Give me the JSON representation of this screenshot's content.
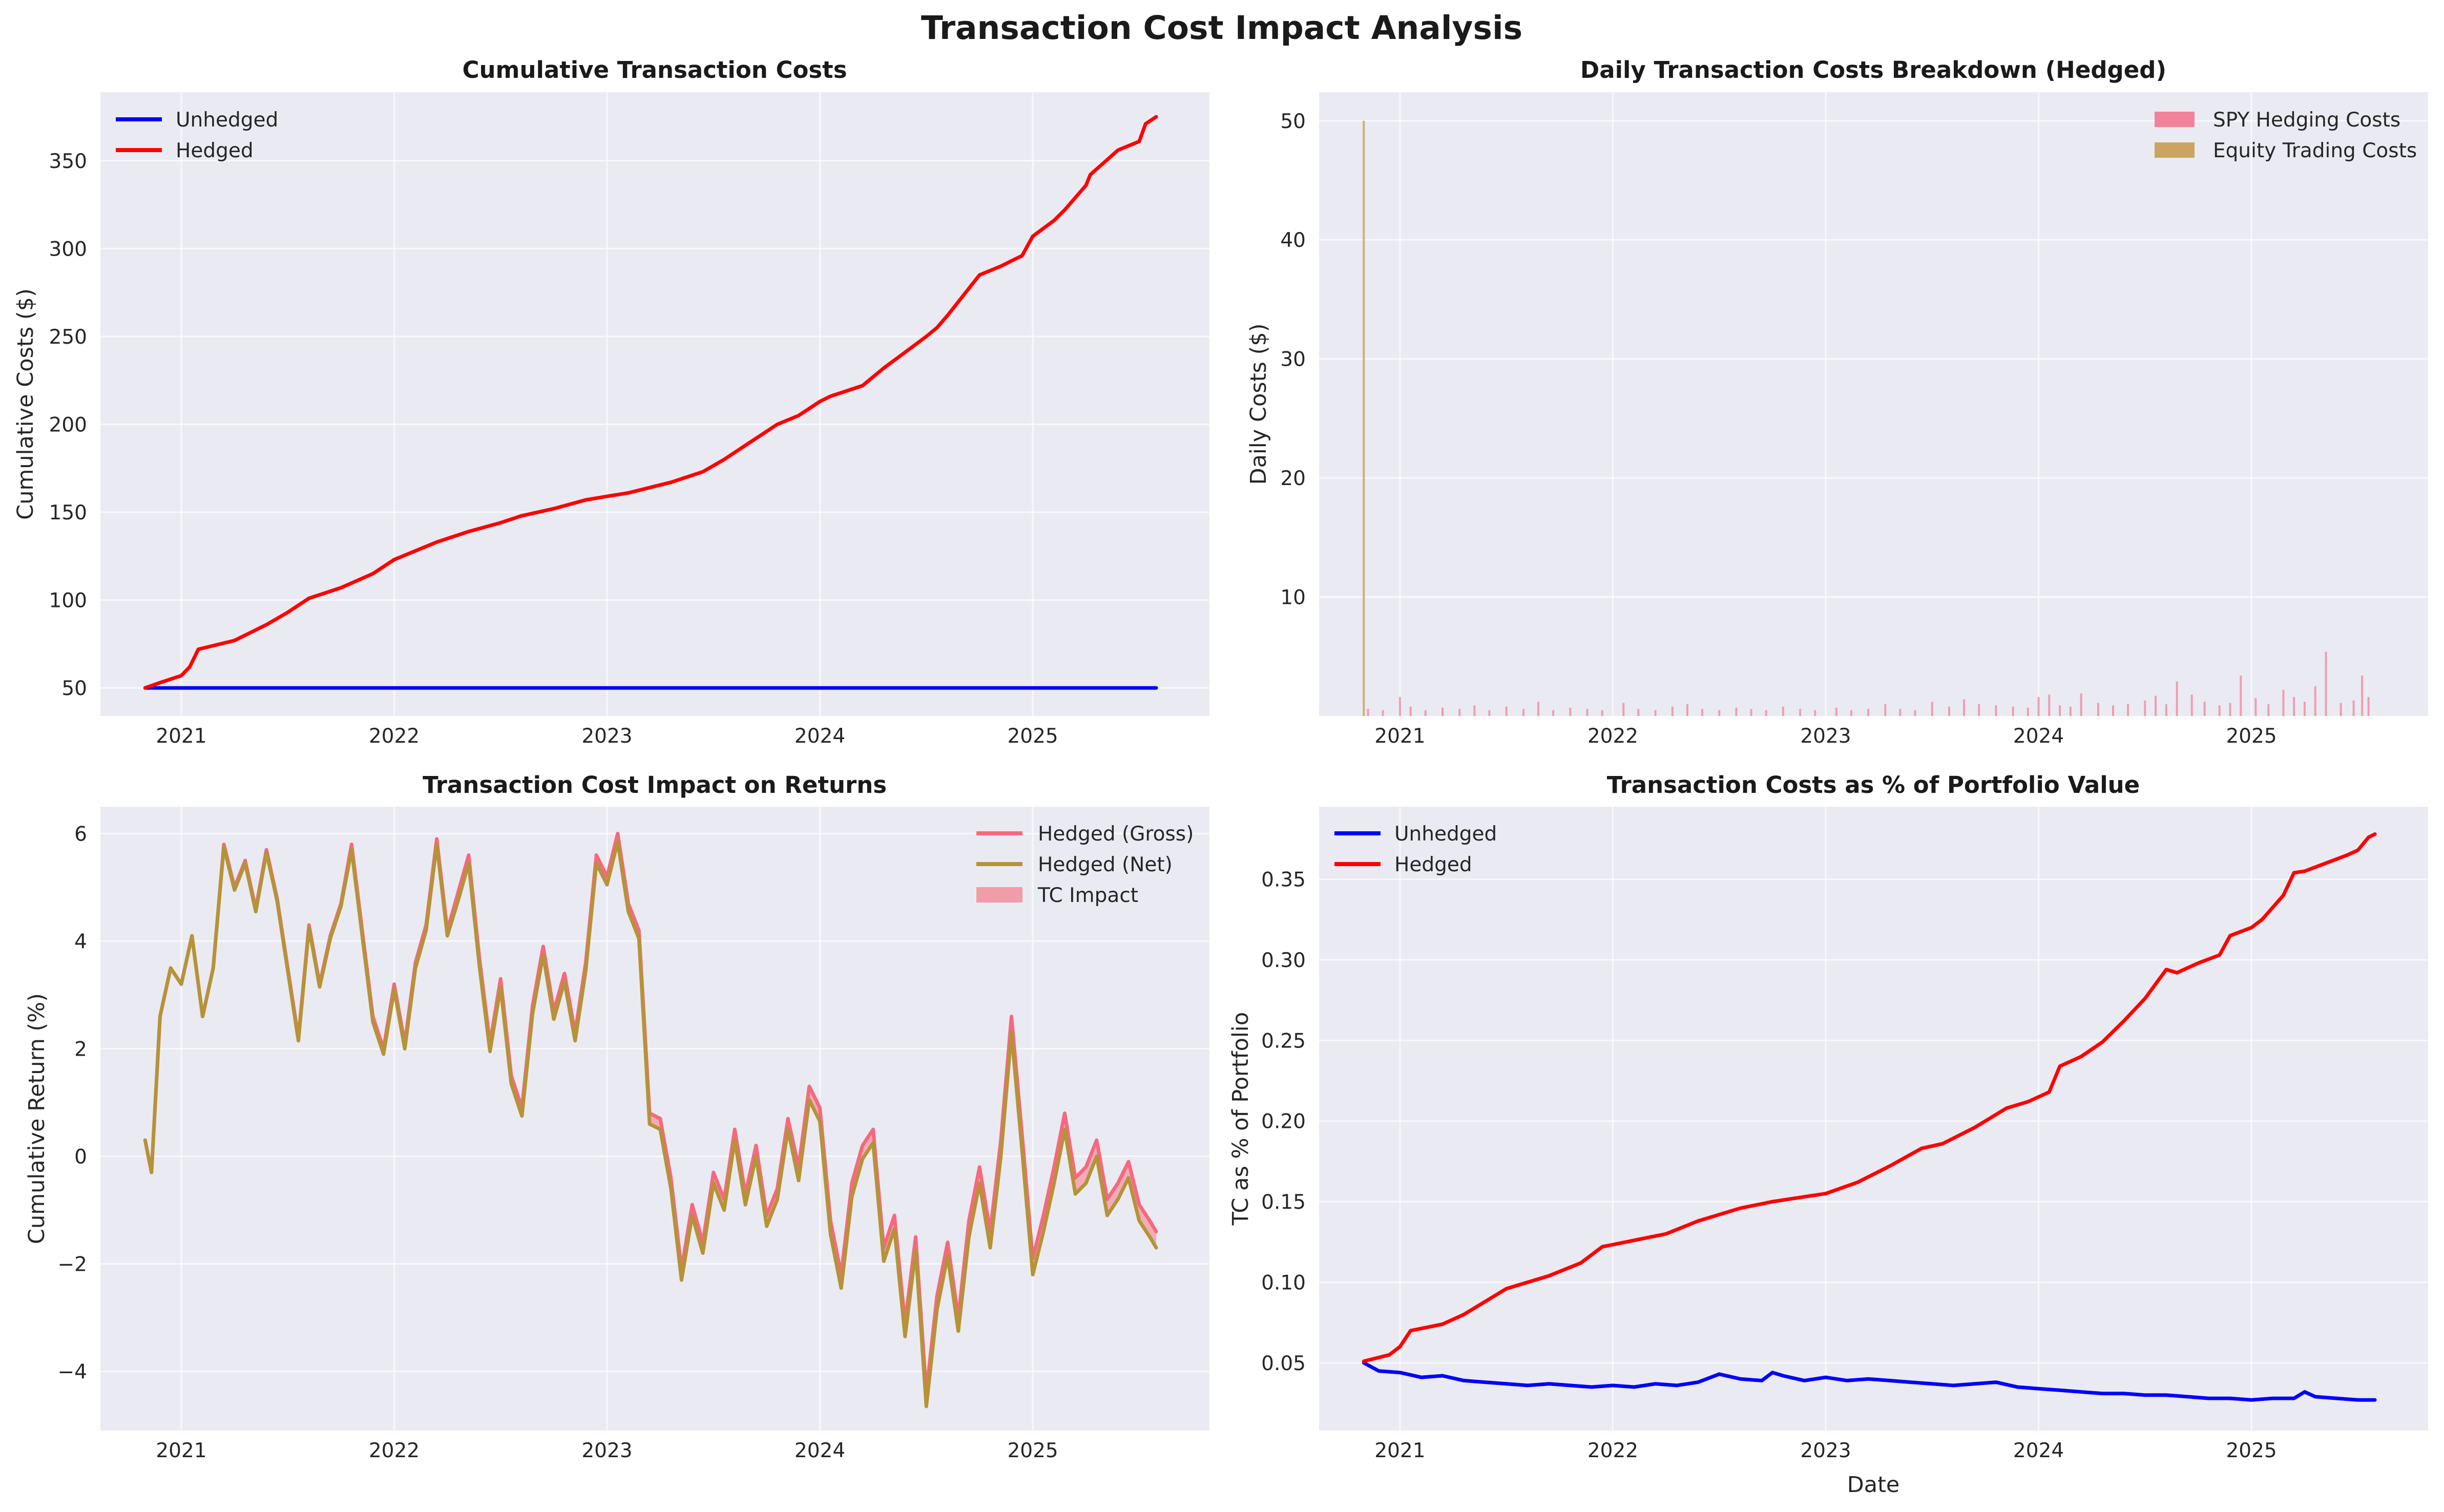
{
  "figure": {
    "title": "Transaction Cost Impact Analysis"
  },
  "x_tick_labels": [
    "2021",
    "2022",
    "2023",
    "2024",
    "2025"
  ],
  "chart_data": [
    {
      "id": "tl",
      "type": "line",
      "title": "Cumulative Transaction Costs",
      "xlabel": "",
      "ylabel": "Cumulative Costs ($)",
      "xlim": [
        2020.62,
        2025.83
      ],
      "ylim": [
        34,
        389
      ],
      "yticks": [
        50,
        100,
        150,
        200,
        250,
        300,
        350
      ],
      "ytick_labels": [
        "50",
        "100",
        "150",
        "200",
        "250",
        "300",
        "350"
      ],
      "grid": true,
      "legend": "top-left",
      "series": [
        {
          "name": "Unhedged",
          "color": "#0000ff",
          "x": [
            2020.83,
            2025.58
          ],
          "y": [
            50,
            50
          ]
        },
        {
          "name": "Hedged",
          "color": "#ff0000",
          "x": [
            2020.83,
            2020.9,
            2021.0,
            2021.04,
            2021.08,
            2021.25,
            2021.4,
            2021.5,
            2021.6,
            2021.75,
            2021.9,
            2022.0,
            2022.1,
            2022.2,
            2022.35,
            2022.5,
            2022.6,
            2022.75,
            2022.9,
            2023.0,
            2023.1,
            2023.2,
            2023.3,
            2023.45,
            2023.55,
            2023.65,
            2023.8,
            2023.9,
            2024.0,
            2024.05,
            2024.2,
            2024.3,
            2024.4,
            2024.5,
            2024.55,
            2024.6,
            2024.75,
            2024.85,
            2024.95,
            2025.0,
            2025.1,
            2025.15,
            2025.25,
            2025.27,
            2025.4,
            2025.5,
            2025.53,
            2025.58
          ],
          "y": [
            50,
            53,
            57,
            62,
            72,
            77,
            86,
            93,
            101,
            107,
            115,
            123,
            128,
            133,
            139,
            144,
            148,
            152,
            157,
            159,
            161,
            164,
            167,
            173,
            180,
            188,
            200,
            205,
            213,
            216,
            222,
            232,
            241,
            250,
            255,
            262,
            285,
            290,
            296,
            307,
            316,
            322,
            336,
            342,
            356,
            361,
            371,
            375
          ]
        }
      ]
    },
    {
      "id": "tr",
      "type": "bar",
      "title": "Daily Transaction Costs Breakdown (Hedged)",
      "xlabel": "",
      "ylabel": "Daily Costs ($)",
      "xlim": [
        2020.62,
        2025.83
      ],
      "ylim": [
        0,
        52.4
      ],
      "yticks": [
        10,
        20,
        30,
        40,
        50
      ],
      "ytick_labels": [
        "10",
        "20",
        "30",
        "40",
        "50"
      ],
      "grid": true,
      "legend": "top-right",
      "series": [
        {
          "name": "SPY Hedging Costs",
          "color": "#f0839a",
          "x": [
            2020.85,
            2020.92,
            2021.0,
            2021.05,
            2021.12,
            2021.2,
            2021.28,
            2021.35,
            2021.42,
            2021.5,
            2021.58,
            2021.65,
            2021.72,
            2021.8,
            2021.88,
            2021.95,
            2022.05,
            2022.12,
            2022.2,
            2022.28,
            2022.35,
            2022.42,
            2022.5,
            2022.58,
            2022.65,
            2022.72,
            2022.8,
            2022.88,
            2022.95,
            2023.05,
            2023.12,
            2023.2,
            2023.28,
            2023.35,
            2023.42,
            2023.5,
            2023.58,
            2023.65,
            2023.72,
            2023.8,
            2023.88,
            2023.95,
            2024.0,
            2024.05,
            2024.1,
            2024.15,
            2024.2,
            2024.28,
            2024.35,
            2024.42,
            2024.5,
            2024.55,
            2024.6,
            2024.65,
            2024.72,
            2024.78,
            2024.85,
            2024.9,
            2024.95,
            2025.02,
            2025.08,
            2025.15,
            2025.2,
            2025.25,
            2025.3,
            2025.35,
            2025.42,
            2025.48,
            2025.52,
            2025.55
          ],
          "y": [
            0.6,
            0.5,
            1.6,
            0.8,
            0.5,
            0.7,
            0.6,
            0.9,
            0.5,
            0.8,
            0.6,
            1.2,
            0.5,
            0.7,
            0.6,
            0.5,
            1.1,
            0.6,
            0.5,
            0.8,
            1.0,
            0.6,
            0.5,
            0.7,
            0.6,
            0.5,
            0.8,
            0.6,
            0.5,
            0.7,
            0.5,
            0.6,
            1.0,
            0.6,
            0.5,
            1.2,
            0.8,
            1.4,
            1.0,
            0.9,
            0.8,
            0.7,
            1.6,
            1.8,
            0.9,
            0.8,
            1.9,
            1.1,
            0.9,
            1.0,
            1.3,
            1.7,
            1.0,
            2.9,
            1.8,
            1.2,
            0.9,
            1.1,
            3.4,
            1.5,
            1.0,
            2.2,
            1.6,
            1.2,
            2.5,
            5.4,
            1.1,
            1.3,
            3.4,
            1.6
          ]
        },
        {
          "name": "Equity Trading Costs",
          "color": "#c9a560",
          "x": [
            2020.83
          ],
          "y": [
            50
          ]
        }
      ]
    },
    {
      "id": "bl",
      "type": "line",
      "title": "Transaction Cost Impact on Returns",
      "xlabel": "",
      "ylabel": "Cumulative Return (%)",
      "xlim": [
        2020.62,
        2025.83
      ],
      "ylim": [
        -5.1,
        6.5
      ],
      "yticks": [
        -4,
        -2,
        0,
        2,
        4,
        6
      ],
      "ytick_labels": [
        "−4",
        "−2",
        "0",
        "2",
        "4",
        "6"
      ],
      "grid": true,
      "legend": "top-right",
      "series": [
        {
          "name": "Hedged (Gross)",
          "color": "#f7687f",
          "x": [
            2020.83,
            2020.86,
            2020.9,
            2020.95,
            2021.0,
            2021.05,
            2021.1,
            2021.15,
            2021.2,
            2021.25,
            2021.3,
            2021.35,
            2021.4,
            2021.45,
            2021.5,
            2021.55,
            2021.6,
            2021.65,
            2021.7,
            2021.75,
            2021.8,
            2021.85,
            2021.9,
            2021.95,
            2022.0,
            2022.05,
            2022.1,
            2022.15,
            2022.2,
            2022.25,
            2022.3,
            2022.35,
            2022.4,
            2022.45,
            2022.5,
            2022.55,
            2022.6,
            2022.65,
            2022.7,
            2022.75,
            2022.8,
            2022.85,
            2022.9,
            2022.95,
            2023.0,
            2023.05,
            2023.1,
            2023.15,
            2023.2,
            2023.25,
            2023.3,
            2023.35,
            2023.4,
            2023.45,
            2023.5,
            2023.55,
            2023.6,
            2023.65,
            2023.7,
            2023.75,
            2023.8,
            2023.85,
            2023.9,
            2023.95,
            2024.0,
            2024.05,
            2024.1,
            2024.15,
            2024.2,
            2024.25,
            2024.3,
            2024.35,
            2024.4,
            2024.45,
            2024.5,
            2024.55,
            2024.6,
            2024.65,
            2024.7,
            2024.75,
            2024.8,
            2024.85,
            2024.9,
            2024.95,
            2025.0,
            2025.05,
            2025.1,
            2025.15,
            2025.2,
            2025.25,
            2025.3,
            2025.35,
            2025.4,
            2025.45,
            2025.5,
            2025.55,
            2025.58
          ],
          "y": [
            0.3,
            -0.3,
            2.6,
            3.5,
            3.2,
            4.1,
            2.6,
            3.5,
            5.8,
            5.0,
            5.5,
            4.6,
            5.7,
            4.8,
            3.5,
            2.2,
            4.3,
            3.2,
            4.1,
            4.7,
            5.8,
            4.2,
            2.6,
            2.0,
            3.2,
            2.1,
            3.6,
            4.3,
            5.9,
            4.2,
            4.9,
            5.6,
            3.7,
            2.1,
            3.3,
            1.5,
            0.9,
            2.8,
            3.9,
            2.7,
            3.4,
            2.3,
            3.6,
            5.6,
            5.2,
            6.0,
            4.7,
            4.2,
            0.8,
            0.7,
            -0.4,
            -2.1,
            -0.9,
            -1.6,
            -0.3,
            -0.8,
            0.5,
            -0.7,
            0.2,
            -1.1,
            -0.6,
            0.7,
            -0.2,
            1.3,
            0.9,
            -1.2,
            -2.2,
            -0.5,
            0.2,
            0.5,
            -1.7,
            -1.1,
            -3.1,
            -1.5,
            -4.4,
            -2.6,
            -1.6,
            -3.0,
            -1.2,
            -0.2,
            -1.4,
            0.3,
            2.6,
            0.4,
            -1.9,
            -1.1,
            -0.2,
            0.8,
            -0.4,
            -0.2,
            0.3,
            -0.8,
            -0.5,
            -0.1,
            -0.9,
            -1.2,
            -1.4
          ]
        },
        {
          "name": "Hedged (Net)",
          "color": "#b59337",
          "x": [
            2020.83,
            2020.86,
            2020.9,
            2020.95,
            2021.0,
            2021.05,
            2021.1,
            2021.15,
            2021.2,
            2021.25,
            2021.3,
            2021.35,
            2021.4,
            2021.45,
            2021.5,
            2021.55,
            2021.6,
            2021.65,
            2021.7,
            2021.75,
            2021.8,
            2021.85,
            2021.9,
            2021.95,
            2022.0,
            2022.05,
            2022.1,
            2022.15,
            2022.2,
            2022.25,
            2022.3,
            2022.35,
            2022.4,
            2022.45,
            2022.5,
            2022.55,
            2022.6,
            2022.65,
            2022.7,
            2022.75,
            2022.8,
            2022.85,
            2022.9,
            2022.95,
            2023.0,
            2023.05,
            2023.1,
            2023.15,
            2023.2,
            2023.25,
            2023.3,
            2023.35,
            2023.4,
            2023.45,
            2023.5,
            2023.55,
            2023.6,
            2023.65,
            2023.7,
            2023.75,
            2023.8,
            2023.85,
            2023.9,
            2023.95,
            2024.0,
            2024.05,
            2024.1,
            2024.15,
            2024.2,
            2024.25,
            2024.3,
            2024.35,
            2024.4,
            2024.45,
            2024.5,
            2024.55,
            2024.6,
            2024.65,
            2024.7,
            2024.75,
            2024.8,
            2024.85,
            2024.9,
            2024.95,
            2025.0,
            2025.05,
            2025.1,
            2025.15,
            2025.2,
            2025.25,
            2025.3,
            2025.35,
            2025.4,
            2025.45,
            2025.5,
            2025.55,
            2025.58
          ],
          "y": [
            0.3,
            -0.3,
            2.6,
            3.5,
            3.2,
            4.1,
            2.6,
            3.5,
            5.75,
            4.95,
            5.45,
            4.55,
            5.65,
            4.75,
            3.45,
            2.15,
            4.25,
            3.15,
            4.05,
            4.65,
            5.7,
            4.1,
            2.5,
            1.9,
            3.1,
            2.0,
            3.5,
            4.2,
            5.8,
            4.1,
            4.75,
            5.45,
            3.55,
            1.95,
            3.15,
            1.35,
            0.75,
            2.65,
            3.75,
            2.55,
            3.25,
            2.15,
            3.45,
            5.45,
            5.05,
            5.85,
            4.55,
            4.05,
            0.6,
            0.5,
            -0.6,
            -2.3,
            -1.1,
            -1.8,
            -0.5,
            -1.0,
            0.3,
            -0.9,
            0.0,
            -1.3,
            -0.8,
            0.5,
            -0.45,
            1.05,
            0.65,
            -1.45,
            -2.45,
            -0.75,
            -0.05,
            0.25,
            -1.95,
            -1.35,
            -3.35,
            -1.75,
            -4.65,
            -2.85,
            -1.85,
            -3.25,
            -1.5,
            -0.5,
            -1.7,
            0.0,
            2.3,
            0.1,
            -2.2,
            -1.4,
            -0.5,
            0.5,
            -0.7,
            -0.5,
            0.0,
            -1.1,
            -0.8,
            -0.4,
            -1.2,
            -1.5,
            -1.7
          ]
        }
      ],
      "fill_between": {
        "name": "TC Impact",
        "color": "#f19ca9",
        "between": [
          "Hedged (Gross)",
          "Hedged (Net)"
        ]
      }
    },
    {
      "id": "br",
      "type": "line",
      "title": "Transaction Costs as % of Portfolio Value",
      "xlabel": "Date",
      "ylabel": "TC as % of Portfolio",
      "xlim": [
        2020.62,
        2025.83
      ],
      "ylim": [
        0.008,
        0.395
      ],
      "yticks": [
        0.05,
        0.1,
        0.15,
        0.2,
        0.25,
        0.3,
        0.35
      ],
      "ytick_labels": [
        "0.05",
        "0.10",
        "0.15",
        "0.20",
        "0.25",
        "0.30",
        "0.35"
      ],
      "grid": true,
      "legend": "top-left",
      "series": [
        {
          "name": "Unhedged",
          "color": "#0000ff",
          "x": [
            2020.83,
            2020.9,
            2021.0,
            2021.1,
            2021.2,
            2021.3,
            2021.4,
            2021.5,
            2021.6,
            2021.7,
            2021.8,
            2021.9,
            2022.0,
            2022.1,
            2022.2,
            2022.3,
            2022.4,
            2022.5,
            2022.6,
            2022.7,
            2022.75,
            2022.8,
            2022.9,
            2023.0,
            2023.1,
            2023.2,
            2023.3,
            2023.4,
            2023.5,
            2023.6,
            2023.7,
            2023.8,
            2023.9,
            2024.0,
            2024.1,
            2024.2,
            2024.3,
            2024.4,
            2024.5,
            2024.6,
            2024.7,
            2024.8,
            2024.9,
            2025.0,
            2025.1,
            2025.2,
            2025.25,
            2025.3,
            2025.4,
            2025.5,
            2025.58
          ],
          "y": [
            0.05,
            0.045,
            0.044,
            0.041,
            0.042,
            0.039,
            0.038,
            0.037,
            0.036,
            0.037,
            0.036,
            0.035,
            0.036,
            0.035,
            0.037,
            0.036,
            0.038,
            0.043,
            0.04,
            0.039,
            0.044,
            0.042,
            0.039,
            0.041,
            0.039,
            0.04,
            0.039,
            0.038,
            0.037,
            0.036,
            0.037,
            0.038,
            0.035,
            0.034,
            0.033,
            0.032,
            0.031,
            0.031,
            0.03,
            0.03,
            0.029,
            0.028,
            0.028,
            0.027,
            0.028,
            0.028,
            0.032,
            0.029,
            0.028,
            0.027,
            0.027
          ]
        },
        {
          "name": "Hedged",
          "color": "#ff0000",
          "x": [
            2020.83,
            2020.95,
            2021.0,
            2021.05,
            2021.2,
            2021.3,
            2021.5,
            2021.7,
            2021.85,
            2021.95,
            2022.1,
            2022.25,
            2022.4,
            2022.5,
            2022.6,
            2022.75,
            2022.9,
            2023.0,
            2023.15,
            2023.3,
            2023.45,
            2023.55,
            2023.7,
            2023.85,
            2023.95,
            2024.05,
            2024.1,
            2024.2,
            2024.3,
            2024.4,
            2024.5,
            2024.6,
            2024.65,
            2024.75,
            2024.85,
            2024.9,
            2025.0,
            2025.05,
            2025.15,
            2025.2,
            2025.25,
            2025.35,
            2025.45,
            2025.5,
            2025.55,
            2025.58
          ],
          "y": [
            0.051,
            0.055,
            0.06,
            0.07,
            0.074,
            0.08,
            0.096,
            0.104,
            0.112,
            0.122,
            0.126,
            0.13,
            0.138,
            0.142,
            0.146,
            0.15,
            0.153,
            0.155,
            0.162,
            0.172,
            0.183,
            0.186,
            0.196,
            0.208,
            0.212,
            0.218,
            0.234,
            0.24,
            0.249,
            0.262,
            0.276,
            0.294,
            0.292,
            0.298,
            0.303,
            0.315,
            0.32,
            0.325,
            0.34,
            0.354,
            0.355,
            0.36,
            0.365,
            0.368,
            0.376,
            0.378
          ]
        }
      ]
    }
  ]
}
